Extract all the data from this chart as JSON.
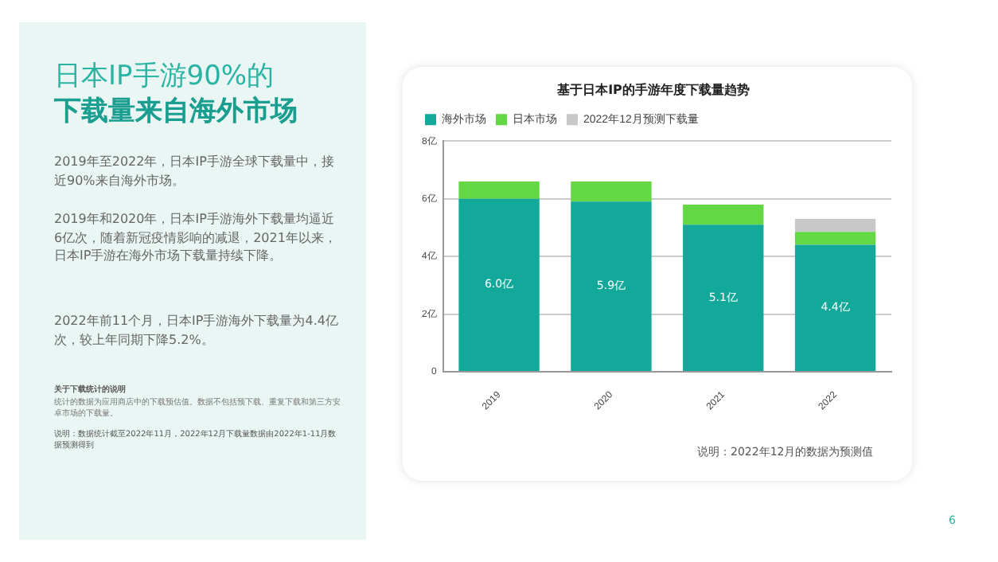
{
  "chart_data": {
    "type": "bar",
    "stacked": true,
    "title": "基于日本IP的手游年度下载量趋势",
    "categories": [
      "2019",
      "2020",
      "2021",
      "2022"
    ],
    "series": [
      {
        "name": "海外市场",
        "color": "#12a89a",
        "values": [
          6.0,
          5.9,
          5.1,
          4.4
        ],
        "value_labels": [
          "6.0亿",
          "5.9亿",
          "5.1亿",
          "4.4亿"
        ]
      },
      {
        "name": "日本市场",
        "color": "#63d844",
        "values": [
          0.6,
          0.7,
          0.7,
          0.45
        ]
      },
      {
        "name": "2022年12月预测下载量",
        "color": "#c8c8c8",
        "values": [
          null,
          null,
          null,
          0.45
        ]
      }
    ],
    "ylim": [
      0,
      8
    ],
    "yticks": [
      {
        "value": 0,
        "label": "0"
      },
      {
        "value": 2,
        "label": "2亿"
      },
      {
        "value": 4,
        "label": "4亿"
      },
      {
        "value": 6,
        "label": "6亿"
      },
      {
        "value": 8,
        "label": "8亿"
      }
    ],
    "grid": "y",
    "legend": "top left",
    "annotations": [
      "日本IP手游90%的",
      "下载量来自海外市场",
      "2019年至2022年，日本IP手游全球下载量中，接近90%来自海外市场。",
      "2019年和2020年，日本IP手游海外下载量均逼近6亿次，随着新冠疫情影响的减退，2021年以来，日本IP手游在海外市场下载量持续下降。",
      "2022年前11个月，日本IP手游海外下载量为4.4亿次，较上年同期下降5.2%。",
      "关于下载统计的说明",
      "统计的数据为应用商店中的下载预估值。数据不包括预下载、重复下载和第三方安卓市场的下载量。",
      "说明：数据统计截至2022年11月，2022年12月下载量数据由2022年1-11月数据预测得到",
      "说明：2022年12月的数据为预测值",
      "6"
    ]
  }
}
